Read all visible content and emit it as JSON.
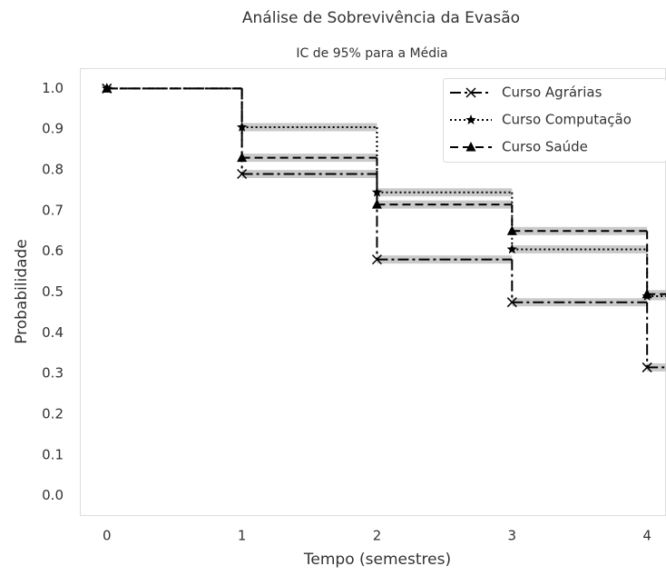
{
  "chart_data": {
    "type": "step",
    "title": "Análise de Sobrevivência da Evasão",
    "subtitle": "IC de 95% para a Média",
    "x_label": "Tempo (semestres)",
    "y_label": "Probabilidade",
    "x": [
      0,
      1,
      2,
      3,
      4
    ],
    "series": [
      {
        "name": "Curso Agrárias",
        "color": "#000000",
        "linestyle": "dashdot",
        "marker": "x",
        "values": [
          1.0,
          0.79,
          0.58,
          0.475,
          0.315
        ],
        "ci_lower": [
          1.0,
          0.78,
          0.57,
          0.465,
          0.305
        ],
        "ci_upper": [
          1.0,
          0.8,
          0.59,
          0.485,
          0.325
        ]
      },
      {
        "name": "Curso Computação",
        "color": "#000000",
        "linestyle": "dotted",
        "marker": "star",
        "values": [
          1.0,
          0.905,
          0.745,
          0.605,
          0.49
        ],
        "ci_lower": [
          1.0,
          0.895,
          0.735,
          0.595,
          0.48
        ],
        "ci_upper": [
          1.0,
          0.915,
          0.755,
          0.615,
          0.5
        ]
      },
      {
        "name": "Curso Saúde",
        "color": "#000000",
        "linestyle": "dashed",
        "marker": "triangle",
        "values": [
          1.0,
          0.83,
          0.715,
          0.65,
          0.495
        ],
        "ci_lower": [
          1.0,
          0.82,
          0.705,
          0.64,
          0.485
        ],
        "ci_upper": [
          1.0,
          0.84,
          0.725,
          0.66,
          0.505
        ]
      }
    ],
    "ci_color": "#c4c4c4",
    "xlim": [
      -0.2,
      4.14
    ],
    "ylim": [
      -0.05,
      1.05
    ],
    "xticks": [
      0,
      1,
      2,
      3,
      4
    ],
    "yticks": [
      {
        "value": 0,
        "label": "0.0"
      },
      0.1,
      0.2,
      0.3,
      0.4,
      0.5,
      0.6,
      0.7,
      0.8,
      0.9,
      {
        "value": 1,
        "label": "1.0"
      }
    ],
    "grid": false,
    "legend": "upper-right"
  }
}
